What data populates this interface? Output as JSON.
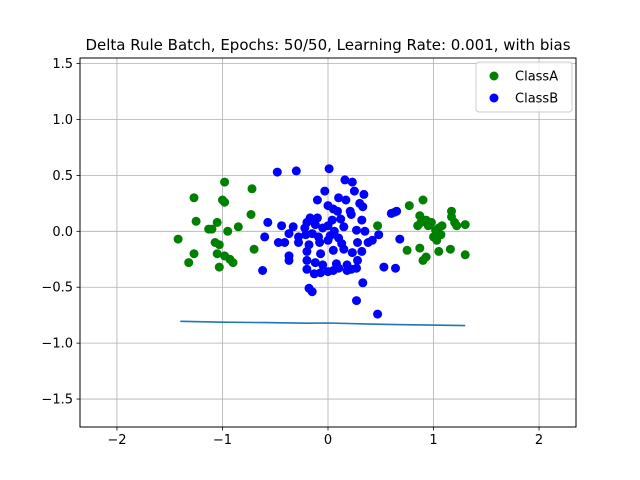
{
  "chart_data": {
    "type": "scatter",
    "title": "Delta Rule Batch, Epochs: 50/50, Learning Rate: 0.001, with bias",
    "xlabel": "",
    "ylabel": "",
    "xlim": [
      -2.35,
      2.35
    ],
    "ylim": [
      -1.75,
      1.55
    ],
    "x_ticks": [
      -2,
      -1,
      0,
      1,
      2
    ],
    "x_tick_labels": [
      "−2",
      "−1",
      "0",
      "1",
      "2"
    ],
    "y_ticks": [
      -1.5,
      -1.0,
      -0.5,
      0.0,
      0.5,
      1.0,
      1.5
    ],
    "y_tick_labels": [
      "−1.5",
      "−1.0",
      "−0.5",
      "0.0",
      "0.5",
      "1.0",
      "1.5"
    ],
    "grid": true,
    "legend_position": "top-right",
    "series": [
      {
        "name": "ClassA",
        "color": "#008000",
        "points": [
          [
            -1.42,
            -0.07
          ],
          [
            -1.27,
            0.3
          ],
          [
            -1.25,
            0.09
          ],
          [
            -1.27,
            -0.2
          ],
          [
            -1.32,
            -0.28
          ],
          [
            -1.13,
            0.02
          ],
          [
            -1.1,
            0.02
          ],
          [
            -1.05,
            0.08
          ],
          [
            -1.0,
            0.28
          ],
          [
            -0.98,
            0.26
          ],
          [
            -0.98,
            0.44
          ],
          [
            -0.95,
            0.0
          ],
          [
            -1.07,
            -0.1
          ],
          [
            -1.03,
            -0.12
          ],
          [
            -1.05,
            -0.2
          ],
          [
            -0.98,
            -0.22
          ],
          [
            -0.93,
            -0.25
          ],
          [
            -0.9,
            -0.28
          ],
          [
            -1.03,
            -0.32
          ],
          [
            -0.85,
            0.04
          ],
          [
            -0.72,
            0.38
          ],
          [
            -0.73,
            0.15
          ],
          [
            -0.7,
            -0.16
          ],
          [
            0.47,
            0.05
          ],
          [
            0.63,
            0.17
          ],
          [
            0.77,
            0.23
          ],
          [
            0.9,
            0.28
          ],
          [
            0.87,
            0.14
          ],
          [
            0.88,
            0.08
          ],
          [
            0.85,
            0.05
          ],
          [
            0.93,
            0.1
          ],
          [
            0.95,
            0.05
          ],
          [
            0.98,
            0.08
          ],
          [
            1.02,
            0.01
          ],
          [
            1.05,
            0.03
          ],
          [
            1.07,
            -0.03
          ],
          [
            1.0,
            -0.05
          ],
          [
            1.03,
            -0.08
          ],
          [
            0.87,
            -0.15
          ],
          [
            0.75,
            -0.17
          ],
          [
            0.93,
            -0.23
          ],
          [
            0.9,
            -0.26
          ],
          [
            1.05,
            -0.18
          ],
          [
            1.17,
            0.18
          ],
          [
            1.17,
            0.13
          ],
          [
            1.2,
            0.08
          ],
          [
            1.22,
            0.05
          ],
          [
            1.3,
            0.06
          ],
          [
            1.16,
            -0.16
          ],
          [
            1.3,
            -0.21
          ],
          [
            1.08,
            0.05
          ]
        ]
      },
      {
        "name": "ClassB",
        "color": "#0000ff",
        "points": [
          [
            -0.48,
            0.53
          ],
          [
            -0.3,
            0.54
          ],
          [
            0.01,
            0.56
          ],
          [
            0.16,
            0.46
          ],
          [
            0.23,
            0.44
          ],
          [
            -0.03,
            0.36
          ],
          [
            0.25,
            0.36
          ],
          [
            0.34,
            0.33
          ],
          [
            -0.1,
            0.28
          ],
          [
            0.1,
            0.3
          ],
          [
            0.17,
            0.28
          ],
          [
            0.3,
            0.25
          ],
          [
            0.0,
            0.23
          ],
          [
            0.05,
            0.2
          ],
          [
            0.09,
            0.18
          ],
          [
            0.21,
            0.18
          ],
          [
            0.33,
            0.22
          ],
          [
            0.65,
            0.18
          ],
          [
            0.6,
            0.16
          ],
          [
            -0.17,
            0.12
          ],
          [
            -0.1,
            0.12
          ],
          [
            0.04,
            0.1
          ],
          [
            0.12,
            0.11
          ],
          [
            0.22,
            0.15
          ],
          [
            0.32,
            0.1
          ],
          [
            -0.57,
            0.08
          ],
          [
            -0.44,
            0.05
          ],
          [
            -0.33,
            0.04
          ],
          [
            -0.2,
            0.08
          ],
          [
            -0.22,
            0.03
          ],
          [
            -0.12,
            0.06
          ],
          [
            -0.05,
            0.03
          ],
          [
            0.0,
            0.05
          ],
          [
            0.06,
            0.0
          ],
          [
            0.15,
            0.04
          ],
          [
            0.27,
            0.01
          ],
          [
            0.35,
            0.0
          ],
          [
            0.48,
            -0.03
          ],
          [
            -0.37,
            -0.02
          ],
          [
            -0.28,
            -0.05
          ],
          [
            -0.21,
            -0.03
          ],
          [
            -0.15,
            -0.02
          ],
          [
            -0.09,
            -0.05
          ],
          [
            0.02,
            -0.04
          ],
          [
            0.1,
            -0.06
          ],
          [
            -0.6,
            -0.05
          ],
          [
            -0.47,
            -0.1
          ],
          [
            -0.41,
            -0.1
          ],
          [
            -0.28,
            -0.1
          ],
          [
            -0.18,
            -0.12
          ],
          [
            -0.08,
            -0.1
          ],
          [
            0.0,
            -0.08
          ],
          [
            0.13,
            -0.11
          ],
          [
            0.28,
            -0.1
          ],
          [
            0.38,
            -0.1
          ],
          [
            0.42,
            -0.08
          ],
          [
            0.68,
            -0.07
          ],
          [
            -0.37,
            -0.22
          ],
          [
            -0.2,
            -0.18
          ],
          [
            -0.07,
            -0.2
          ],
          [
            0.05,
            -0.17
          ],
          [
            0.15,
            -0.16
          ],
          [
            0.23,
            -0.19
          ],
          [
            0.32,
            -0.18
          ],
          [
            -0.37,
            -0.26
          ],
          [
            -0.2,
            -0.26
          ],
          [
            -0.12,
            -0.28
          ],
          [
            -0.05,
            -0.3
          ],
          [
            0.08,
            -0.29
          ],
          [
            0.18,
            -0.3
          ],
          [
            0.28,
            -0.26
          ],
          [
            -0.62,
            -0.35
          ],
          [
            -0.2,
            -0.34
          ],
          [
            -0.13,
            -0.38
          ],
          [
            -0.07,
            -0.37
          ],
          [
            0.05,
            -0.35
          ],
          [
            0.1,
            -0.33
          ],
          [
            0.22,
            -0.34
          ],
          [
            0.27,
            -0.33
          ],
          [
            0.53,
            -0.32
          ],
          [
            0.64,
            -0.33
          ],
          [
            0.33,
            -0.46
          ],
          [
            -0.18,
            -0.51
          ],
          [
            -0.15,
            -0.54
          ],
          [
            0.27,
            -0.62
          ],
          [
            0.47,
            -0.74
          ],
          [
            0.0,
            -0.36
          ],
          [
            0.18,
            -0.35
          ]
        ]
      },
      {
        "name": "",
        "type": "line",
        "color": "#1f77b4",
        "points": [
          [
            -1.4,
            -0.805
          ],
          [
            -1.0,
            -0.813
          ],
          [
            -0.6,
            -0.816
          ],
          [
            -0.2,
            -0.822
          ],
          [
            0.0,
            -0.82
          ],
          [
            0.4,
            -0.83
          ],
          [
            0.8,
            -0.836
          ],
          [
            1.3,
            -0.843
          ]
        ]
      }
    ]
  }
}
